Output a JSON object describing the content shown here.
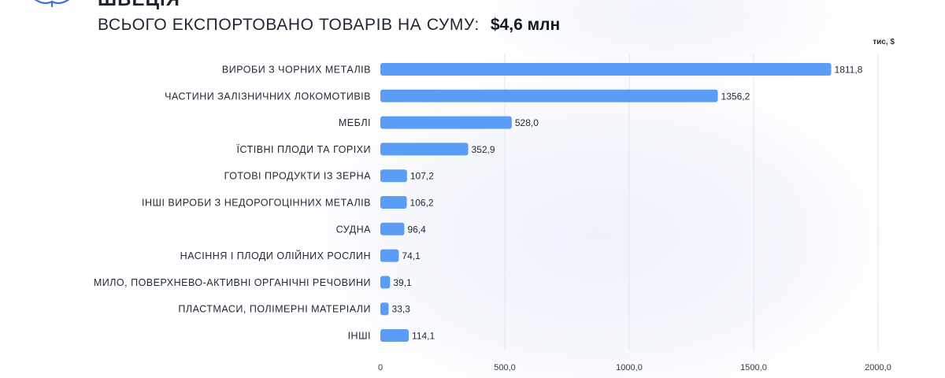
{
  "header": {
    "country_partial": "ШВЕЦІЯ",
    "title": "ВСЬОГО ЕКСПОРТОВАНО ТОВАРІВ НА СУМУ:",
    "total": "$4,6 млн",
    "logo_icon": "book-logo-icon"
  },
  "colors": {
    "bar": "#5b9cf6",
    "grid": "#e3e6ec",
    "text": "#1f2633"
  },
  "chart_data": {
    "type": "bar",
    "orientation": "horizontal",
    "title": "ВСЬОГО ЕКСПОРТОВАНО ТОВАРІВ НА СУМУ: $4,6 млн",
    "unit": "тис, $",
    "categories": [
      "ВИРОБИ З ЧОРНИХ МЕТАЛІВ",
      "ЧАСТИНИ ЗАЛІЗНИЧНИХ ЛОКОМОТИВІВ",
      "МЕБЛІ",
      "ЇСТІВНІ ПЛОДИ ТА ГОРІХИ",
      "ГОТОВІ ПРОДУКТИ ІЗ ЗЕРНА",
      "ІНШІ ВИРОБИ З НЕДОРОГОЦІННИХ МЕТАЛІВ",
      "СУДНА",
      "НАСІННЯ І ПЛОДИ ОЛІЙНИХ РОСЛИН",
      "МИЛО, ПОВЕРХНЕВО-АКТИВНІ ОРГАНІЧНІ РЕЧОВИНИ",
      "ПЛАСТМАСИ, ПОЛІМЕРНІ МАТЕРІАЛИ",
      "ІНШІ"
    ],
    "values": [
      1811.8,
      1356.2,
      528.0,
      352.9,
      107.2,
      106.2,
      96.4,
      74.1,
      39.1,
      33.3,
      114.1
    ],
    "value_labels": [
      "1811,8",
      "1356,2",
      "528,0",
      "352,9",
      "107,2",
      "106,2",
      "96,4",
      "74,1",
      "39,1",
      "33,3",
      "114,1"
    ],
    "xlim": [
      0,
      2000
    ],
    "x_ticks": [
      0,
      500,
      1000,
      1500,
      2000
    ],
    "x_tick_labels": [
      "0",
      "500,0",
      "1000,0",
      "1500,0",
      "2000,0"
    ],
    "grid": true,
    "legend": "none"
  }
}
